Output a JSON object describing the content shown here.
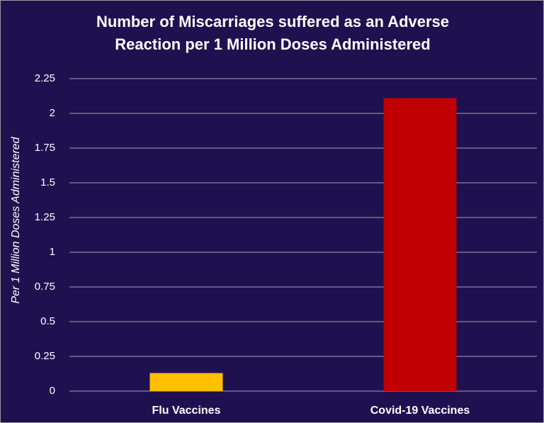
{
  "chart_data": {
    "type": "bar",
    "title": "Number of Miscarriages suffered as an Adverse Reaction per 1 Million Doses Administered",
    "y_label": "Per 1 Million Doses Administered",
    "categories": [
      "Flu Vaccines",
      "Covid-19 Vaccines"
    ],
    "values": [
      0.13,
      2.11
    ],
    "colors": [
      "#ffc000",
      "#c00000"
    ],
    "ylim": [
      0,
      2.25
    ],
    "yticks": [
      0,
      0.25,
      0.5,
      0.75,
      1,
      1.25,
      1.5,
      1.75,
      2,
      2.25
    ],
    "grid": true
  }
}
